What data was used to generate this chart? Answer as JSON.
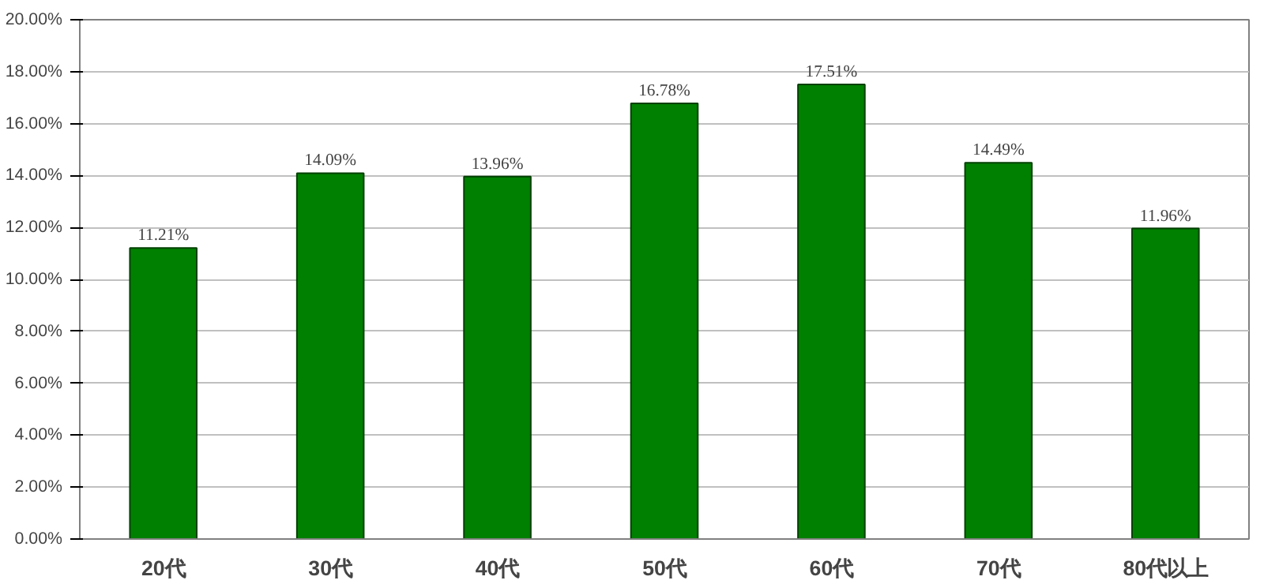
{
  "chart_data": {
    "type": "bar",
    "categories": [
      "20代",
      "30代",
      "40代",
      "50代",
      "60代",
      "70代",
      "80代以上"
    ],
    "values": [
      11.21,
      14.09,
      13.96,
      16.78,
      17.51,
      14.49,
      11.96
    ],
    "value_labels": [
      "11.21%",
      "14.09%",
      "13.96%",
      "16.78%",
      "17.51%",
      "14.49%",
      "11.96%"
    ],
    "color": "#008000",
    "ylim": [
      0,
      20
    ],
    "yticks": [
      {
        "value": 0,
        "label": "0.00%"
      },
      {
        "value": 2,
        "label": "2.00%"
      },
      {
        "value": 4,
        "label": "4.00%"
      },
      {
        "value": 6,
        "label": "6.00%"
      },
      {
        "value": 8,
        "label": "8.00%"
      },
      {
        "value": 10,
        "label": "10.00%"
      },
      {
        "value": 12,
        "label": "12.00%"
      },
      {
        "value": 14,
        "label": "14.00%"
      },
      {
        "value": 16,
        "label": "16.00%"
      },
      {
        "value": 18,
        "label": "18.00%"
      },
      {
        "value": 20,
        "label": "20.00%"
      }
    ],
    "grid": "y"
  }
}
